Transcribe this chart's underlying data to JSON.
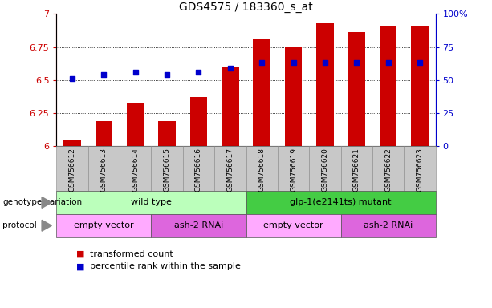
{
  "title": "GDS4575 / 183360_s_at",
  "samples": [
    "GSM756612",
    "GSM756613",
    "GSM756614",
    "GSM756615",
    "GSM756616",
    "GSM756617",
    "GSM756618",
    "GSM756619",
    "GSM756620",
    "GSM756621",
    "GSM756622",
    "GSM756623"
  ],
  "bar_values": [
    6.05,
    6.19,
    6.33,
    6.19,
    6.37,
    6.6,
    6.81,
    6.75,
    6.93,
    6.86,
    6.91,
    6.91
  ],
  "dot_values": [
    6.51,
    6.54,
    6.56,
    6.54,
    6.56,
    6.59,
    6.635,
    6.635,
    6.635,
    6.635,
    6.635,
    6.635
  ],
  "bar_color": "#cc0000",
  "dot_color": "#0000cc",
  "ymin": 6.0,
  "ymax": 7.0,
  "yticks": [
    6.0,
    6.25,
    6.5,
    6.75,
    7.0
  ],
  "ytick_labels": [
    "6",
    "6.25",
    "6.5",
    "6.75",
    "7"
  ],
  "y2min": 0,
  "y2max": 100,
  "y2ticks": [
    0,
    25,
    50,
    75,
    100
  ],
  "y2tick_labels": [
    "0",
    "25",
    "50",
    "75",
    "100%"
  ],
  "genotype_spans": [
    {
      "text": "wild type",
      "start": 0,
      "end": 5,
      "color": "#bbffbb"
    },
    {
      "text": "glp-1(e2141ts) mutant",
      "start": 6,
      "end": 11,
      "color": "#44cc44"
    }
  ],
  "protocol_spans": [
    {
      "text": "empty vector",
      "start": 0,
      "end": 2,
      "color": "#ffaaff"
    },
    {
      "text": "ash-2 RNAi",
      "start": 3,
      "end": 5,
      "color": "#dd66dd"
    },
    {
      "text": "empty vector",
      "start": 6,
      "end": 8,
      "color": "#ffaaff"
    },
    {
      "text": "ash-2 RNAi",
      "start": 9,
      "end": 11,
      "color": "#dd66dd"
    }
  ],
  "bar_color_legend": "#cc0000",
  "dot_color_legend": "#0000cc",
  "ylabel_color": "#cc0000",
  "y2label_color": "#0000cc",
  "bar_width": 0.55,
  "tick_label_bg": "#c8c8c8",
  "grid_color": "#000000"
}
